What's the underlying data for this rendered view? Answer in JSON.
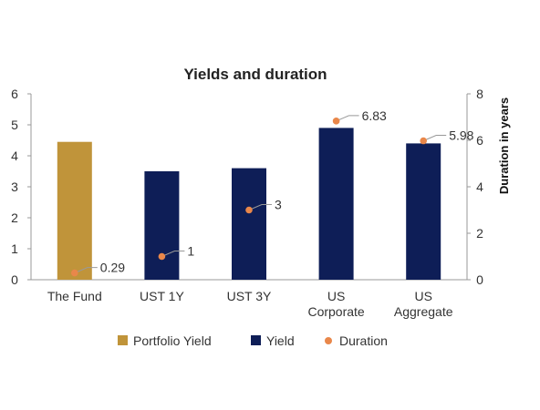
{
  "chart_data": {
    "type": "bar",
    "title": "Yields and duration",
    "categories": [
      [
        "The Fund"
      ],
      [
        "UST 1Y"
      ],
      [
        "UST 3Y"
      ],
      [
        "US",
        "Corporate"
      ],
      [
        "US",
        "Aggregate"
      ]
    ],
    "series": [
      {
        "name": "Portfolio Yield",
        "kind": "bar",
        "axis": "left",
        "color": "#C0943A",
        "values": [
          4.45,
          null,
          null,
          null,
          null
        ]
      },
      {
        "name": "Yield",
        "kind": "bar",
        "axis": "left",
        "color": "#0E1E57",
        "values": [
          null,
          3.5,
          3.6,
          4.9,
          4.4
        ]
      },
      {
        "name": "Duration",
        "kind": "scatter",
        "axis": "right",
        "color": "#E9874A",
        "values": [
          0.29,
          1,
          3,
          6.83,
          5.98
        ],
        "labels": [
          "0.29",
          "1",
          "3",
          "6.83",
          "5.98"
        ]
      }
    ],
    "y_left": {
      "ylim": [
        0,
        6
      ],
      "ticks": [
        "0",
        "1",
        "2",
        "3",
        "4",
        "5",
        "6"
      ]
    },
    "y_right": {
      "label": "Duration in years",
      "ylim": [
        0,
        8
      ],
      "ticks": [
        "0",
        "2",
        "4",
        "6",
        "8"
      ]
    },
    "grid": false,
    "legend": "bottom"
  }
}
